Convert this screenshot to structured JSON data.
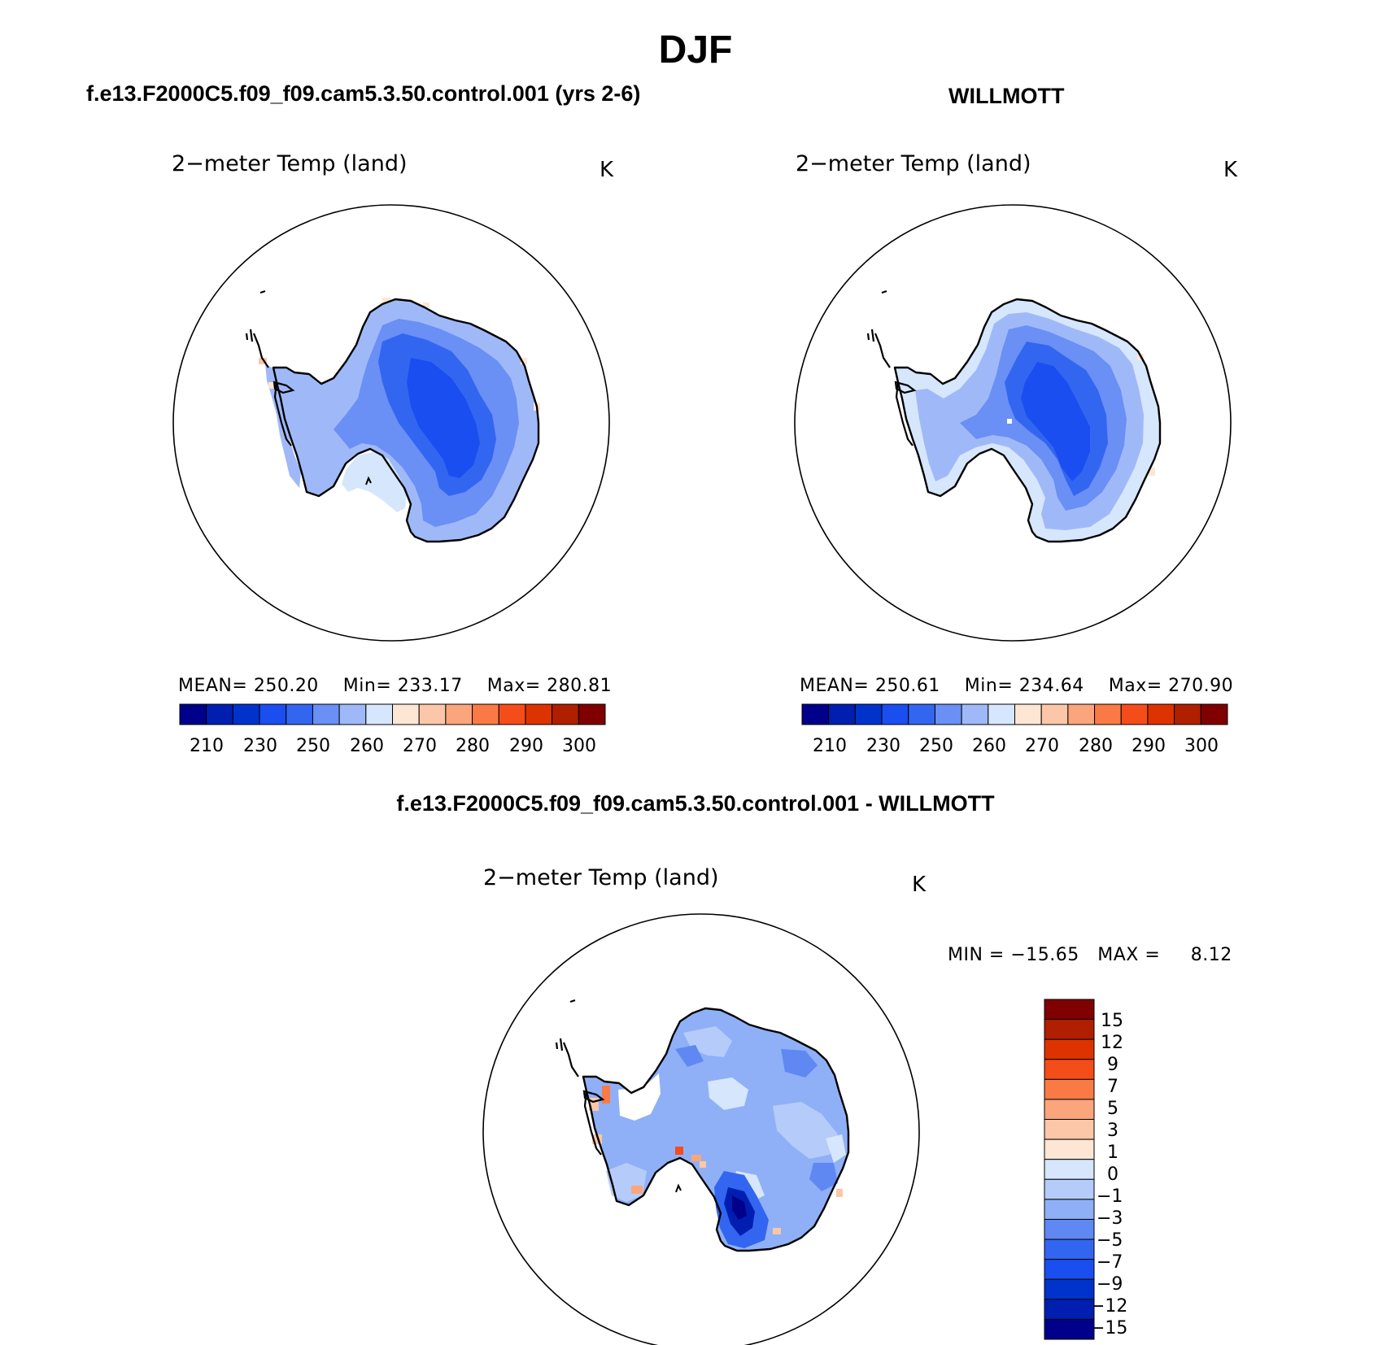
{
  "figure": {
    "title": "DJF",
    "unit": "K"
  },
  "panels": [
    {
      "id": "model",
      "header": "f.e13.F2000C5.f09_f09.cam5.3.50.control.001 (yrs 2-6)",
      "variable_label": "2−meter Temp (land)",
      "unit": "K",
      "stats": {
        "mean_label": "MEAN=",
        "mean": "250.20",
        "min_label": "Min=",
        "min": "233.17",
        "max_label": "Max=",
        "max": "280.81"
      },
      "colorbar": {
        "ticks": [
          "210",
          "230",
          "250",
          "260",
          "270",
          "280",
          "290",
          "300"
        ],
        "colors": [
          "#00008b",
          "#001fb0",
          "#0033cc",
          "#1a4ef0",
          "#3366f0",
          "#6a8ff5",
          "#9fb9f8",
          "#d6e6fc",
          "#fde6d4",
          "#fcc7a8",
          "#fba57c",
          "#fa7a45",
          "#f54d1a",
          "#dd3300",
          "#b01f00",
          "#800000"
        ]
      }
    },
    {
      "id": "obs",
      "header": "WILLMOTT",
      "variable_label": "2−meter Temp (land)",
      "unit": "K",
      "stats": {
        "mean_label": "MEAN=",
        "mean": "250.61",
        "min_label": "Min=",
        "min": "234.64",
        "max_label": "Max=",
        "max": "270.90"
      },
      "colorbar": {
        "ticks": [
          "210",
          "230",
          "250",
          "260",
          "270",
          "280",
          "290",
          "300"
        ],
        "colors": [
          "#00008b",
          "#001fb0",
          "#0033cc",
          "#1a4ef0",
          "#3366f0",
          "#6a8ff5",
          "#9fb9f8",
          "#d6e6fc",
          "#fde6d4",
          "#fcc7a8",
          "#fba57c",
          "#fa7a45",
          "#f54d1a",
          "#dd3300",
          "#b01f00",
          "#800000"
        ]
      }
    },
    {
      "id": "diff",
      "header": "f.e13.F2000C5.f09_f09.cam5.3.50.control.001 - WILLMOTT",
      "variable_label": "2−meter Temp (land)",
      "unit": "K",
      "stats": {
        "min_label": "MIN =",
        "min": "−15.65",
        "max_label": "MAX =",
        "max": "8.12"
      },
      "colorbar": {
        "ticks": [
          "15",
          "12",
          "9",
          "7",
          "5",
          "3",
          "1",
          "0",
          "−1",
          "−3",
          "−5",
          "−7",
          "−9",
          "−12",
          "−15"
        ],
        "colors": [
          "#800000",
          "#b01f00",
          "#dd3300",
          "#f54d1a",
          "#fa7a45",
          "#fba57c",
          "#fcc7a8",
          "#fde6d4",
          "#d6e6fc",
          "#b5ccfa",
          "#8fb0f7",
          "#5f88f3",
          "#3366f0",
          "#1a4ef0",
          "#0033cc",
          "#001fb0",
          "#00008b"
        ]
      }
    }
  ]
}
